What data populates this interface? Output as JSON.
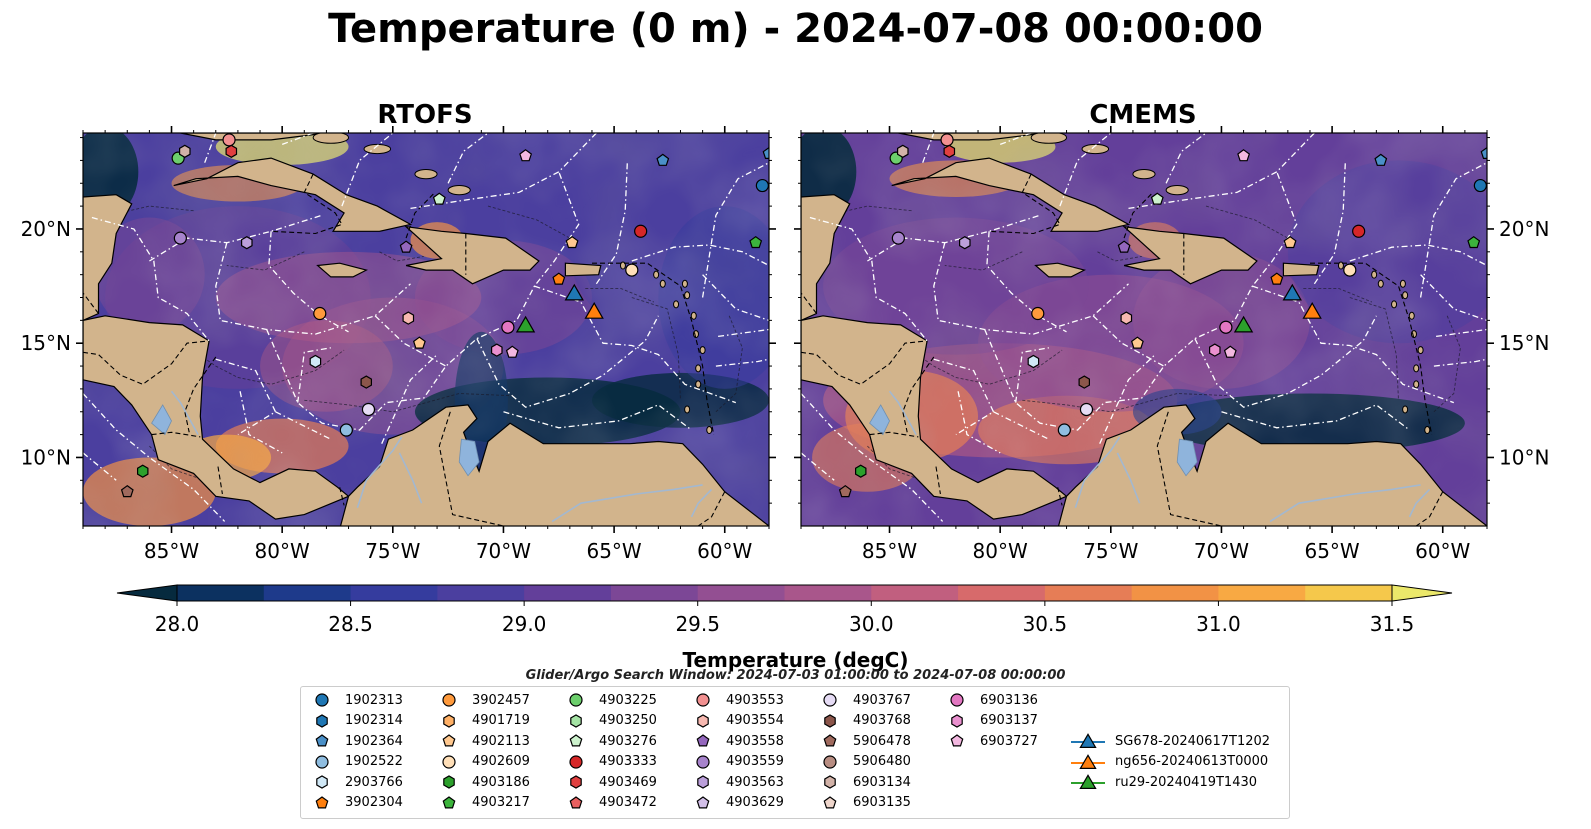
{
  "title": "Temperature (0 m) - 2024-07-08 00:00:00",
  "panels": [
    {
      "name": "RTOFS"
    },
    {
      "name": "CMEMS"
    }
  ],
  "map": {
    "lon_range": [
      -89,
      -58
    ],
    "lat_range": [
      7,
      24.2
    ],
    "lon_ticks": [
      {
        "value": -85,
        "label": "85°W"
      },
      {
        "value": -80,
        "label": "80°W"
      },
      {
        "value": -75,
        "label": "75°W"
      },
      {
        "value": -70,
        "label": "70°W"
      },
      {
        "value": -65,
        "label": "65°W"
      },
      {
        "value": -60,
        "label": "60°W"
      }
    ],
    "lat_ticks": [
      {
        "value": 20,
        "label": "20°N"
      },
      {
        "value": 15,
        "label": "15°N"
      },
      {
        "value": 10,
        "label": "10°N"
      }
    ],
    "colors": {
      "land": "#d2b48c",
      "eez_lines": "#ffffff",
      "borders": "#000000",
      "rivers": "#a3b8d0"
    }
  },
  "colorbar": {
    "label": "Temperature (degC)",
    "min": 28.0,
    "max": 31.5,
    "step": 0.25,
    "ticks": [
      {
        "value": 28.0,
        "label": "28.0"
      },
      {
        "value": 28.5,
        "label": "28.5"
      },
      {
        "value": 29.0,
        "label": "29.0"
      },
      {
        "value": 29.5,
        "label": "29.5"
      },
      {
        "value": 30.0,
        "label": "30.0"
      },
      {
        "value": 30.5,
        "label": "30.5"
      },
      {
        "value": 31.0,
        "label": "31.0"
      },
      {
        "value": 31.5,
        "label": "31.5"
      }
    ],
    "colors": [
      "#062a3e",
      "#0c3160",
      "#1e3a8b",
      "#353c9e",
      "#4b3f9f",
      "#633f9a",
      "#7c4796",
      "#934f92",
      "#a9568b",
      "#c15f7f",
      "#d76a6b",
      "#e67d56",
      "#f29245",
      "#f8a943",
      "#f5c84b",
      "#ebe86a"
    ]
  },
  "search_window": "Glider/Argo Search Window: 2024-07-03 01:00:00 to 2024-07-08 00:00:00",
  "legend": [
    {
      "label": "1902313",
      "marker": "circle",
      "color": "#1f77b4"
    },
    {
      "label": "1902314",
      "marker": "hexagon",
      "color": "#1f77b4"
    },
    {
      "label": "1902364",
      "marker": "pentagon",
      "color": "#4a90c8"
    },
    {
      "label": "1902522",
      "marker": "circle",
      "color": "#8fbde0"
    },
    {
      "label": "2903766",
      "marker": "hexagon",
      "color": "#d0e8f6"
    },
    {
      "label": "3902304",
      "marker": "pentagon",
      "color": "#ff7f0e"
    },
    {
      "label": "3902457",
      "marker": "circle",
      "color": "#ff9a3c"
    },
    {
      "label": "4901719",
      "marker": "hexagon",
      "color": "#ffb066"
    },
    {
      "label": "4902113",
      "marker": "pentagon",
      "color": "#ffc88f"
    },
    {
      "label": "4902609",
      "marker": "circle",
      "color": "#ffdfb8"
    },
    {
      "label": "4903186",
      "marker": "hexagon",
      "color": "#2ca02c"
    },
    {
      "label": "4903217",
      "marker": "pentagon",
      "color": "#3cb43c"
    },
    {
      "label": "4903225",
      "marker": "circle",
      "color": "#6ccf6c"
    },
    {
      "label": "4903250",
      "marker": "hexagon",
      "color": "#a4e3a4"
    },
    {
      "label": "4903276",
      "marker": "pentagon",
      "color": "#cdf2cd"
    },
    {
      "label": "4903333",
      "marker": "circle",
      "color": "#d62728"
    },
    {
      "label": "4903469",
      "marker": "hexagon",
      "color": "#e04040"
    },
    {
      "label": "4903472",
      "marker": "pentagon",
      "color": "#e96060"
    },
    {
      "label": "4903553",
      "marker": "circle",
      "color": "#f29090"
    },
    {
      "label": "4903554",
      "marker": "hexagon",
      "color": "#f7b8b0"
    },
    {
      "label": "4903558",
      "marker": "pentagon",
      "color": "#9467bd"
    },
    {
      "label": "4903559",
      "marker": "circle",
      "color": "#a783cc"
    },
    {
      "label": "4903563",
      "marker": "hexagon",
      "color": "#bb9fda"
    },
    {
      "label": "4903629",
      "marker": "pentagon",
      "color": "#d2bfe8"
    },
    {
      "label": "4903767",
      "marker": "circle",
      "color": "#e6dcf5"
    },
    {
      "label": "4903768",
      "marker": "hexagon",
      "color": "#8c564b"
    },
    {
      "label": "5906478",
      "marker": "pentagon",
      "color": "#a06a5e"
    },
    {
      "label": "5906480",
      "marker": "circle",
      "color": "#b88d82"
    },
    {
      "label": "6903134",
      "marker": "hexagon",
      "color": "#d2b2a8"
    },
    {
      "label": "6903135",
      "marker": "pentagon",
      "color": "#efd6cc"
    },
    {
      "label": "6903136",
      "marker": "circle",
      "color": "#e377c2"
    },
    {
      "label": "6903137",
      "marker": "hexagon",
      "color": "#ea90cf"
    },
    {
      "label": "6903727",
      "marker": "pentagon",
      "color": "#f3b8e0"
    },
    {
      "label": "SG678-20240617T1202",
      "marker": "triangle",
      "color": "#1f77b4"
    },
    {
      "label": "ng656-20240613T0000",
      "marker": "triangle",
      "color": "#ff7f0e"
    },
    {
      "label": "ru29-20240419T1430",
      "marker": "triangle",
      "color": "#2ca02c"
    }
  ],
  "markers": [
    {
      "id": "1902313",
      "lon": -58.3,
      "lat": 21.9
    },
    {
      "id": "1902364",
      "lon": -58.0,
      "lat": 23.3
    },
    {
      "id": "1902364",
      "lon": -62.8,
      "lat": 23.0
    },
    {
      "id": "1902522",
      "lon": -77.1,
      "lat": 11.2
    },
    {
      "id": "2903766",
      "lon": -78.5,
      "lat": 14.2
    },
    {
      "id": "3902304",
      "lon": -67.5,
      "lat": 17.8
    },
    {
      "id": "3902457",
      "lon": -78.3,
      "lat": 16.3
    },
    {
      "id": "4902113",
      "lon": -66.9,
      "lat": 19.4
    },
    {
      "id": "4902113",
      "lon": -73.8,
      "lat": 15.0
    },
    {
      "id": "4902609",
      "lon": -64.2,
      "lat": 18.2
    },
    {
      "id": "4903186",
      "lon": -86.3,
      "lat": 9.4
    },
    {
      "id": "4903217",
      "lon": -58.6,
      "lat": 19.4
    },
    {
      "id": "4903225",
      "lon": -84.7,
      "lat": 23.1
    },
    {
      "id": "4903276",
      "lon": -72.9,
      "lat": 21.3
    },
    {
      "id": "4903333",
      "lon": -63.8,
      "lat": 19.9
    },
    {
      "id": "4903469",
      "lon": -82.3,
      "lat": 23.4
    },
    {
      "id": "4903553",
      "lon": -82.4,
      "lat": 23.9
    },
    {
      "id": "4903554",
      "lon": -74.3,
      "lat": 16.1
    },
    {
      "id": "4903558",
      "lon": -74.4,
      "lat": 19.2
    },
    {
      "id": "4903559",
      "lon": -84.6,
      "lat": 19.6
    },
    {
      "id": "4903563",
      "lon": -81.6,
      "lat": 19.4
    },
    {
      "id": "4903767",
      "lon": -76.1,
      "lat": 12.1
    },
    {
      "id": "4903768",
      "lon": -76.2,
      "lat": 13.3
    },
    {
      "id": "5906478",
      "lon": -87.0,
      "lat": 8.5
    },
    {
      "id": "6903134",
      "lon": -84.4,
      "lat": 23.4
    },
    {
      "id": "6903136",
      "lon": -69.8,
      "lat": 15.7
    },
    {
      "id": "6903137",
      "lon": -70.3,
      "lat": 14.7
    },
    {
      "id": "6903727",
      "lon": -69.6,
      "lat": 14.6
    },
    {
      "id": "6903727",
      "lon": -69.0,
      "lat": 23.2
    },
    {
      "id": "SG678-20240617T1202",
      "lon": -66.8,
      "lat": 17.2
    },
    {
      "id": "ng656-20240613T0000",
      "lon": -65.9,
      "lat": 16.4
    },
    {
      "id": "ru29-20240419T1430",
      "lon": -69.0,
      "lat": 15.8
    }
  ]
}
